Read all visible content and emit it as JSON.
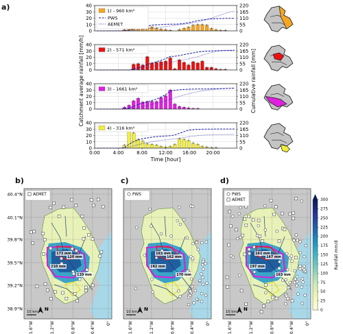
{
  "panel_letters": [
    "a)",
    "b)",
    "c)",
    "d)"
  ],
  "colors": {
    "orange": "#f5a623",
    "red": "#ee1111",
    "magenta": "#e020e0",
    "yellow": "#f2ee3a",
    "pws_line": "#1a1a9c",
    "aemet_line": "#2a2ab0",
    "sea": "#a8d8e8",
    "land": "#c8c8c8"
  },
  "chart_data": {
    "type": "bar",
    "xlabel": "Time [hour]",
    "ylabel": "Catchment average rainfall [mm/h]",
    "ylabel_right": "Cumulative rainfall [mm]",
    "xticks": [
      "0:00",
      "4:00",
      "8:00",
      "12:00",
      "16:00",
      "20:00"
    ],
    "ylim": [
      0,
      40
    ],
    "yticks": [
      "0",
      "10",
      "20",
      "30",
      "40"
    ],
    "ylim_right": [
      0,
      220
    ],
    "yticks_right": [
      "0",
      "55",
      "110",
      "165",
      "220"
    ],
    "legend_lines": [
      "PWS",
      "AEMET"
    ],
    "grid": true,
    "panels": [
      {
        "name": "1) - 960 km²",
        "color": "#f5a623",
        "values": [
          0,
          0,
          0,
          0,
          0,
          0,
          2,
          5,
          8,
          13,
          8,
          6,
          6,
          4,
          3,
          2,
          1,
          0,
          2,
          4,
          6,
          9,
          10,
          10,
          9,
          4,
          2,
          1,
          1,
          0,
          0
        ],
        "pws_cum": [
          0,
          0,
          0,
          0,
          0,
          0,
          2,
          7,
          15,
          28,
          36,
          42,
          48,
          52,
          55,
          57,
          58,
          58,
          60,
          64,
          70,
          79,
          89,
          95,
          100,
          104,
          106,
          107,
          108,
          108,
          108
        ],
        "aemet_cum": [
          0,
          0,
          0,
          0,
          0,
          0,
          1,
          3,
          5,
          9,
          13,
          17,
          22,
          27,
          33,
          37,
          42,
          47,
          53,
          58,
          64,
          70,
          78,
          86,
          98,
          110,
          124,
          138,
          151,
          164,
          170
        ]
      },
      {
        "name": "2) - 571 km²",
        "color": "#ee1111",
        "values": [
          0,
          0,
          0,
          0,
          0,
          0,
          0,
          0,
          9,
          10,
          8,
          21,
          11,
          12,
          13,
          14,
          19,
          2,
          16,
          12,
          8,
          13,
          11,
          14,
          4,
          4,
          2,
          1,
          1,
          0,
          0
        ],
        "pws_cum": [
          0,
          0,
          0,
          0,
          0,
          0,
          0,
          0,
          9,
          19,
          27,
          48,
          59,
          71,
          84,
          98,
          117,
          119,
          125,
          133,
          141,
          148,
          155,
          160,
          163,
          165,
          167,
          168,
          169,
          169,
          169
        ],
        "aemet_cum": [
          0,
          0,
          0,
          0,
          0,
          0,
          0,
          0,
          5,
          10,
          15,
          22,
          30,
          38,
          46,
          55,
          64,
          73,
          80,
          88,
          95,
          105,
          115,
          128,
          141,
          152,
          160,
          166,
          169,
          171,
          172
        ]
      },
      {
        "name": "3) - 1661 km²",
        "color": "#e020e0",
        "values": [
          0,
          0,
          0,
          0,
          0,
          0,
          3,
          6,
          13,
          17,
          11,
          12,
          12,
          12,
          18,
          21,
          30,
          8,
          4,
          3,
          2,
          1,
          1,
          0,
          0,
          0,
          0,
          0,
          0,
          0,
          0
        ],
        "pws_cum": [
          0,
          0,
          0,
          0,
          0,
          0,
          3,
          9,
          22,
          39,
          50,
          62,
          74,
          86,
          104,
          125,
          155,
          163,
          167,
          170,
          172,
          173,
          174,
          174,
          174,
          175,
          176,
          177,
          178,
          180,
          181
        ],
        "aemet_cum": [
          0,
          0,
          0,
          0,
          0,
          0,
          1,
          3,
          8,
          15,
          22,
          30,
          40,
          50,
          60,
          72,
          85,
          98,
          110,
          122,
          132,
          142,
          150,
          157,
          163,
          168,
          172,
          175,
          177,
          179,
          180
        ]
      },
      {
        "name": "4) - 316 km²",
        "color": "#f2ee3a",
        "values": [
          0,
          0,
          0,
          0,
          0,
          0,
          5,
          28,
          24,
          14,
          11,
          7,
          6,
          5,
          3,
          2,
          3,
          6,
          15,
          14,
          12,
          8,
          6,
          3,
          2,
          1,
          1,
          0,
          0,
          0,
          0
        ],
        "pws_cum": [
          0,
          0,
          0,
          0,
          0,
          0,
          5,
          33,
          57,
          71,
          82,
          89,
          95,
          100,
          103,
          105,
          108,
          114,
          129,
          143,
          155,
          160,
          163,
          164,
          165,
          165,
          166,
          166,
          166,
          166,
          166
        ],
        "aemet_cum": [
          0,
          0,
          0,
          0,
          0,
          0,
          2,
          10,
          20,
          30,
          40,
          48,
          56,
          62,
          68,
          72,
          76,
          80,
          86,
          92,
          98,
          104,
          108,
          112,
          114,
          116,
          117,
          118,
          118,
          119,
          119
        ]
      }
    ]
  },
  "maps": {
    "lat_ticks": [
      "40.4°N",
      "40.1°N",
      "39.8°N",
      "39.5°N",
      "39.2°N",
      "38.9°N"
    ],
    "lon_ticks": [
      "1.6°W",
      "1.2°W",
      "0.8°W",
      "0.4°W",
      "0°"
    ],
    "north": "N",
    "scale": "10 km",
    "legend_b": [
      "AEMET"
    ],
    "legend_c": [
      "PWS"
    ],
    "legend_d": [
      "PWS",
      "AEMET"
    ],
    "labels_b": [
      "173 mm",
      "120 mm",
      "210 mm",
      "120 mm"
    ],
    "labels_c": [
      "163 mm",
      "162 mm",
      "182 mm",
      "170 mm"
    ],
    "labels_d": [
      "162 mm",
      "167 mm",
      "197 mm",
      "163 mm"
    ],
    "colorbar": {
      "label": "Rainfall mm/d",
      "ticks": [
        "300",
        "275",
        "250",
        "225",
        "200",
        "175",
        "150",
        "125",
        "100",
        "75",
        "50",
        "25",
        "0"
      ]
    }
  }
}
